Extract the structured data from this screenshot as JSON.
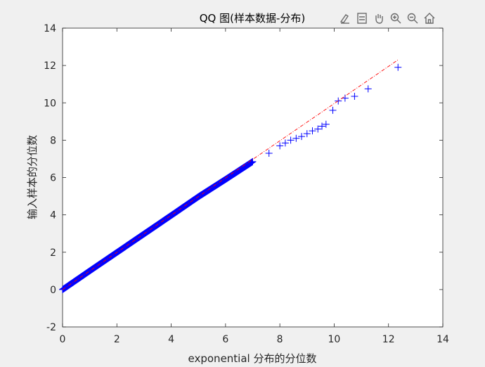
{
  "toolbar": {
    "items": [
      {
        "name": "brush-icon"
      },
      {
        "name": "legend-icon"
      },
      {
        "name": "pan-icon"
      },
      {
        "name": "zoom-in-icon"
      },
      {
        "name": "zoom-out-icon"
      },
      {
        "name": "home-icon"
      }
    ]
  },
  "chart_data": {
    "type": "scatter",
    "title": "QQ 图(样本数据-分布)",
    "xlabel": "exponential 分布的分位数",
    "ylabel": "输入样本的分位数",
    "xlim": [
      0,
      14
    ],
    "ylim": [
      -2,
      14
    ],
    "xticks": [
      0,
      2,
      4,
      6,
      8,
      10,
      12,
      14
    ],
    "yticks": [
      -2,
      0,
      2,
      4,
      6,
      8,
      10,
      12,
      14
    ],
    "grid": false,
    "colors": {
      "points": "#0000ff",
      "reference_line": "#ff0000",
      "axis": "#262626",
      "plot_bg": "#ffffff",
      "figure_bg": "#f0f0f0"
    },
    "reference_line": {
      "x": [
        0,
        12.35
      ],
      "y": [
        0,
        12.3
      ]
    },
    "series": [
      {
        "marker": "+",
        "x": [
          0,
          1,
          2,
          3,
          4,
          5,
          6,
          7,
          7.6,
          8,
          8.2,
          8.4,
          8.6,
          8.8,
          9.0,
          9.2,
          9.4,
          9.55,
          9.7,
          9.95,
          10.15,
          10.4,
          10.75,
          11.25,
          12.35
        ],
        "y": [
          0,
          1.0,
          1.99,
          2.98,
          3.97,
          4.97,
          5.9,
          6.85,
          7.3,
          7.7,
          7.85,
          8.0,
          8.1,
          8.2,
          8.35,
          8.5,
          8.6,
          8.75,
          8.85,
          9.6,
          10.1,
          10.25,
          10.35,
          10.75,
          11.9
        ]
      }
    ]
  }
}
